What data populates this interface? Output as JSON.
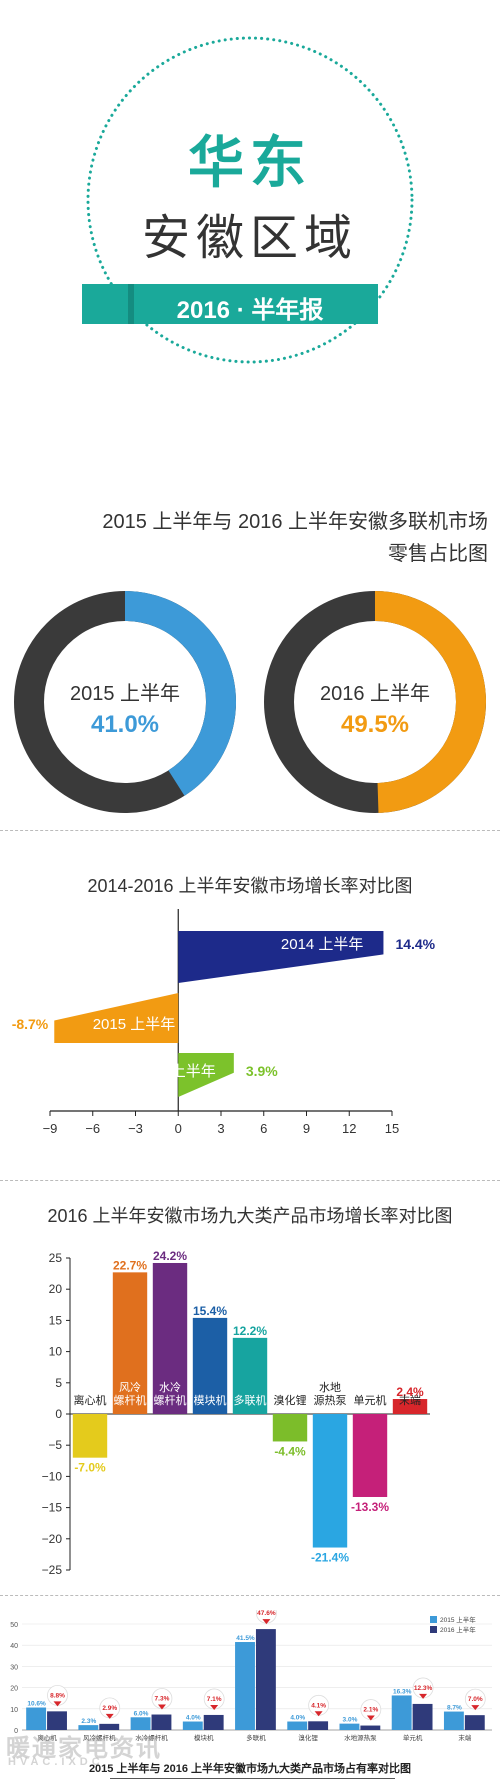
{
  "header": {
    "region": "华东",
    "province": "安徽区域",
    "banner": "2016 · 半年报"
  },
  "colors": {
    "teal": "#1aa99a",
    "ring_dark": "#3a3a3a",
    "blue_2015": "#3d9ad8",
    "orange_2016": "#f29b12",
    "navy_2014": "#1d2a8a",
    "green_2016": "#7cc22b"
  },
  "donut_section": {
    "title_line1": "2015 上半年与 2016 上半年安徽多联机市场",
    "title_line2": "零售占比图"
  },
  "growth_section": {
    "title": "2014-2016 上半年安徽市场增长率对比图"
  },
  "categories_section": {
    "title": "2016 上半年安徽市场九大类产品市场增长率对比图"
  },
  "share_section": {
    "caption": "2015 上半年与 2016 上半年安徽市场九大类产品市场占有率对比图"
  },
  "watermark": {
    "cn": "暖通家电资讯",
    "en": "HVAC.IXDC"
  },
  "chart_data": [
    {
      "type": "pie",
      "title": "2015 上半年",
      "value_label": "41.0%",
      "values": [
        41.0,
        59.0
      ],
      "colors": [
        "#3d9ad8",
        "#3a3a3a"
      ]
    },
    {
      "type": "pie",
      "title": "2016 上半年",
      "value_label": "49.5%",
      "values": [
        49.5,
        50.5
      ],
      "colors": [
        "#f29b12",
        "#3a3a3a"
      ]
    },
    {
      "type": "bar",
      "orientation": "horizontal",
      "categories": [
        "2014 上半年",
        "2015 上半年",
        "2016 上半年"
      ],
      "values": [
        14.4,
        -8.7,
        3.9
      ],
      "value_labels": [
        "14.4%",
        "-8.7%",
        "3.9%"
      ],
      "colors": [
        "#1d2a8a",
        "#f29b12",
        "#7cc22b"
      ],
      "xlim": [
        -9,
        15
      ],
      "xticks": [
        -9,
        -6,
        -3,
        0,
        3,
        6,
        9,
        12,
        15
      ]
    },
    {
      "type": "bar",
      "categories": [
        "离心机",
        "风冷螺杆机",
        "水冷螺杆机",
        "模块机",
        "多联机",
        "溴化锂",
        "水地源热泵",
        "单元机",
        "末端"
      ],
      "values": [
        -7.0,
        22.7,
        24.2,
        15.4,
        12.2,
        -4.4,
        -21.4,
        -13.3,
        2.4
      ],
      "value_labels": [
        "-7.0%",
        "22.7%",
        "24.2%",
        "15.4%",
        "12.2%",
        "-4.4%",
        "-21.4%",
        "-13.3%",
        "2.4%"
      ],
      "colors": [
        "#e4cb1c",
        "#e0701e",
        "#6b2c80",
        "#1c5fa6",
        "#17a4a0",
        "#7cbd2a",
        "#2aa6e2",
        "#c52079",
        "#d7262b"
      ],
      "ylim": [
        -25,
        25
      ],
      "yticks": [
        -25,
        -20,
        -15,
        -10,
        -5,
        0,
        5,
        10,
        15,
        20,
        25
      ]
    },
    {
      "type": "bar",
      "categories": [
        "离心机",
        "风冷螺杆机",
        "水冷螺杆机",
        "模块机",
        "多联机",
        "溴化锂",
        "水地源热泵",
        "单元机",
        "末端"
      ],
      "series": [
        {
          "name": "2015 上半年",
          "values": [
            10.6,
            2.3,
            6.0,
            4.0,
            41.5,
            4.0,
            3.0,
            16.3,
            8.7
          ],
          "color": "#3d9ad8"
        },
        {
          "name": "2016 上半年",
          "values": [
            8.8,
            2.9,
            7.3,
            7.1,
            47.6,
            4.1,
            2.1,
            12.3,
            7.0
          ],
          "color": "#2f3a7a"
        }
      ],
      "badge_labels": [
        "8.8%",
        "2.9%",
        "7.3%",
        "7.1%",
        "47.6%",
        "4.1%",
        "2.1%",
        "12.3%",
        "7.0%"
      ],
      "bar_labels_2015": [
        "10.6%",
        "2.3%",
        "6.0%",
        "4.0%",
        "41.5%",
        "4.0%",
        "3.0%",
        "16.3%",
        "8.7%"
      ],
      "ylim": [
        0,
        50
      ],
      "yticks": [
        0,
        10,
        20,
        30,
        40,
        50
      ],
      "legend": "top-right"
    }
  ]
}
